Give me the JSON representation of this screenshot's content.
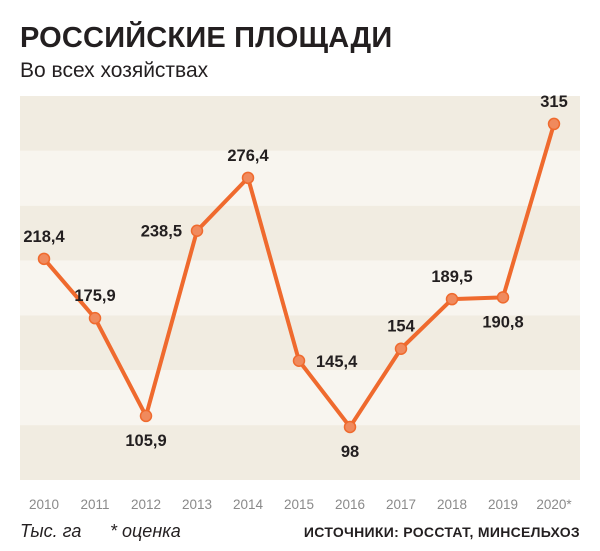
{
  "title": "РОССИЙСКИЕ ПЛОЩАДИ",
  "subtitle": "Во всех хозяйствах",
  "footer": {
    "unit": "Тыс. га",
    "note": "* оценка",
    "source": "ИСТОЧНИКИ: РОССТАТ, МИНСЕЛЬХОЗ"
  },
  "colors": {
    "line": "#ef6a2e",
    "band_dark": "#f1ece1",
    "band_light": "#f8f5ef"
  },
  "chart_data": {
    "type": "line",
    "title": "РОССИЙСКИЕ ПЛОЩАДИ",
    "subtitle": "Во всех хозяйствах",
    "xlabel": "",
    "ylabel": "Тыс. га",
    "ylim": [
      60,
      335
    ],
    "grid": false,
    "categories": [
      "2010",
      "2011",
      "2012",
      "2013",
      "2014",
      "2015",
      "2016",
      "2017",
      "2018",
      "2019",
      "2020*"
    ],
    "series": [
      {
        "name": "Площади",
        "values": [
          218.4,
          175.9,
          105.9,
          238.5,
          276.4,
          145.4,
          98,
          154,
          189.5,
          190.8,
          315
        ],
        "labels": [
          "218,4",
          "175,9",
          "105,9",
          "238,5",
          "276,4",
          "145,4",
          "98",
          "154",
          "189,5",
          "190,8",
          "315"
        ]
      }
    ]
  }
}
